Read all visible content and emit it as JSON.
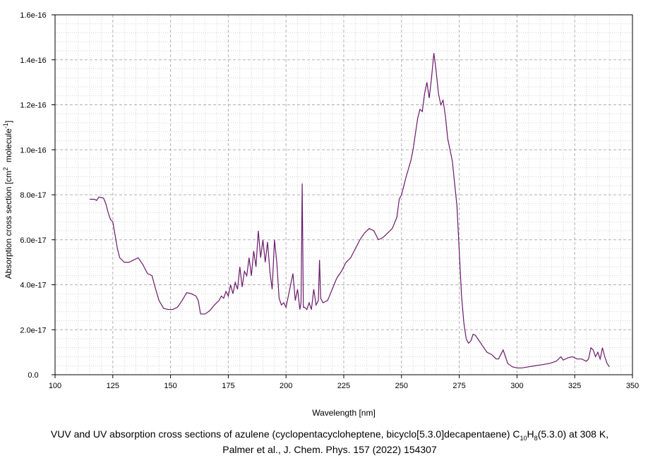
{
  "chart_data": {
    "type": "line",
    "title": [
      "VUV and UV absorption cross sections of azulene (cyclopentacycloheptene, bicyclo[5.3.0]decapentaene) C",
      "10",
      "H",
      "8",
      "(5.3.0) at 308 K,"
    ],
    "subtitle": "Palmer et al., J. Chem. Phys. 157 (2022) 154307",
    "xlabel": "Wavelength [nm]",
    "ylabel": [
      "Absorption cross section [cm",
      "2",
      "  molecule",
      "-1",
      "]"
    ],
    "xlim": [
      100,
      350
    ],
    "xticks": [
      100,
      125,
      150,
      175,
      200,
      225,
      250,
      275,
      300,
      325,
      350
    ],
    "ylim": [
      0,
      1.6e-16
    ],
    "yticks": [
      {
        "value": 0,
        "label": "0.0"
      },
      {
        "value": 2e-17,
        "label": "2.0e-17"
      },
      {
        "value": 4e-17,
        "label": "4.0e-17"
      },
      {
        "value": 6e-17,
        "label": "6.0e-17"
      },
      {
        "value": 8e-17,
        "label": "8.0e-17"
      },
      {
        "value": 1e-16,
        "label": "1.0e-16"
      },
      {
        "value": 1.2e-16,
        "label": "1.2e-16"
      },
      {
        "value": 1.4e-16,
        "label": "1.4e-16"
      },
      {
        "value": 1.6e-16,
        "label": "1.6e-16"
      }
    ],
    "grid": true,
    "x": [
      115,
      117,
      118,
      119,
      121,
      122,
      123,
      124,
      125,
      126,
      127,
      128,
      130,
      132,
      134,
      136,
      138,
      140,
      142,
      143,
      145,
      147,
      149,
      151,
      153,
      155,
      157,
      159,
      161,
      162,
      163,
      165,
      167,
      169,
      171,
      172,
      173,
      174,
      175,
      176,
      177,
      178,
      179,
      180,
      181,
      182,
      183,
      184,
      185,
      186,
      187,
      188,
      189,
      190,
      191,
      192,
      193,
      194,
      195,
      196,
      197,
      198,
      199,
      200,
      201,
      202,
      203,
      204,
      205,
      206,
      206.5,
      207,
      207.5,
      208,
      209,
      210,
      211,
      212,
      213,
      214,
      214.5,
      215,
      216,
      218,
      220,
      222,
      224,
      226,
      228,
      230,
      232,
      234,
      236,
      238,
      240,
      242,
      244,
      246,
      248,
      249,
      250,
      252,
      254,
      255,
      256,
      257,
      258,
      259,
      260,
      261,
      262,
      263,
      264,
      265,
      266,
      267,
      268,
      269,
      270,
      271,
      272,
      273,
      274,
      275,
      276,
      277,
      278,
      279,
      280,
      281,
      282,
      283,
      285,
      287,
      289,
      291,
      292,
      293,
      294,
      295,
      296,
      298,
      300,
      302,
      305,
      308,
      311,
      314,
      317,
      319,
      320,
      322,
      324,
      326,
      328,
      330,
      331,
      332,
      333,
      334,
      335,
      336,
      337,
      338,
      339,
      340
    ],
    "series": [
      {
        "name": "azulene",
        "color": "#6b1a6b",
        "values": [
          7.8e-17,
          7.8e-17,
          7.75e-17,
          7.9e-17,
          7.85e-17,
          7.6e-17,
          7.2e-17,
          6.9e-17,
          6.8e-17,
          6.2e-17,
          5.6e-17,
          5.2e-17,
          5e-17,
          5e-17,
          5.1e-17,
          5.2e-17,
          4.9e-17,
          4.5e-17,
          4.4e-17,
          4e-17,
          3.3e-17,
          2.95e-17,
          2.9e-17,
          2.9e-17,
          3e-17,
          3.3e-17,
          3.65e-17,
          3.6e-17,
          3.5e-17,
          3.3e-17,
          2.7e-17,
          2.7e-17,
          2.85e-17,
          3.1e-17,
          3.3e-17,
          3.5e-17,
          3.4e-17,
          3.7e-17,
          3.5e-17,
          4e-17,
          3.6e-17,
          4.1e-17,
          3.8e-17,
          4.8e-17,
          3.9e-17,
          4.6e-17,
          4.4e-17,
          5.2e-17,
          4.4e-17,
          5.5e-17,
          4.8e-17,
          6.4e-17,
          5.2e-17,
          6e-17,
          5e-17,
          5.9e-17,
          4.6e-17,
          3.8e-17,
          6e-17,
          5e-17,
          3.4e-17,
          3.1e-17,
          3.2e-17,
          3e-17,
          3.5e-17,
          4e-17,
          4.5e-17,
          3.3e-17,
          3.8e-17,
          2.9e-17,
          3.2e-17,
          8.5e-17,
          3e-17,
          3e-17,
          2.9e-17,
          3.2e-17,
          2.9e-17,
          3.8e-17,
          3.1e-17,
          3.3e-17,
          5.1e-17,
          3.4e-17,
          3.2e-17,
          3.3e-17,
          3.8e-17,
          4.3e-17,
          4.6e-17,
          5e-17,
          5.2e-17,
          5.6e-17,
          6e-17,
          6.3e-17,
          6.5e-17,
          6.4e-17,
          6e-17,
          6.1e-17,
          6.3e-17,
          6.5e-17,
          7e-17,
          7.8e-17,
          8e-17,
          8.8e-17,
          9.5e-17,
          1e-16,
          1.07e-16,
          1.14e-16,
          1.18e-16,
          1.17e-16,
          1.25e-16,
          1.3e-16,
          1.23e-16,
          1.32e-16,
          1.43e-16,
          1.35e-16,
          1.25e-16,
          1.2e-16,
          1.22e-16,
          1.15e-16,
          1.05e-16,
          1e-16,
          9.5e-17,
          8.5e-17,
          7.5e-17,
          5.5e-17,
          3.5e-17,
          2.3e-17,
          1.6e-17,
          1.4e-17,
          1.5e-17,
          1.8e-17,
          1.75e-17,
          1.6e-17,
          1.3e-17,
          1e-17,
          9e-18,
          7e-18,
          7e-18,
          9e-18,
          1.1e-17,
          8e-18,
          5e-18,
          3.5e-18,
          3e-18,
          3e-18,
          3.5e-18,
          4e-18,
          4.5e-18,
          5e-18,
          6e-18,
          8e-18,
          6.5e-18,
          7.5e-18,
          8e-18,
          7e-18,
          7e-18,
          6e-18,
          7e-18,
          1.2e-17,
          1.1e-17,
          8e-18,
          1e-17,
          7e-18,
          1.2e-17,
          8e-18,
          5e-18,
          3.5e-18
        ]
      }
    ]
  }
}
